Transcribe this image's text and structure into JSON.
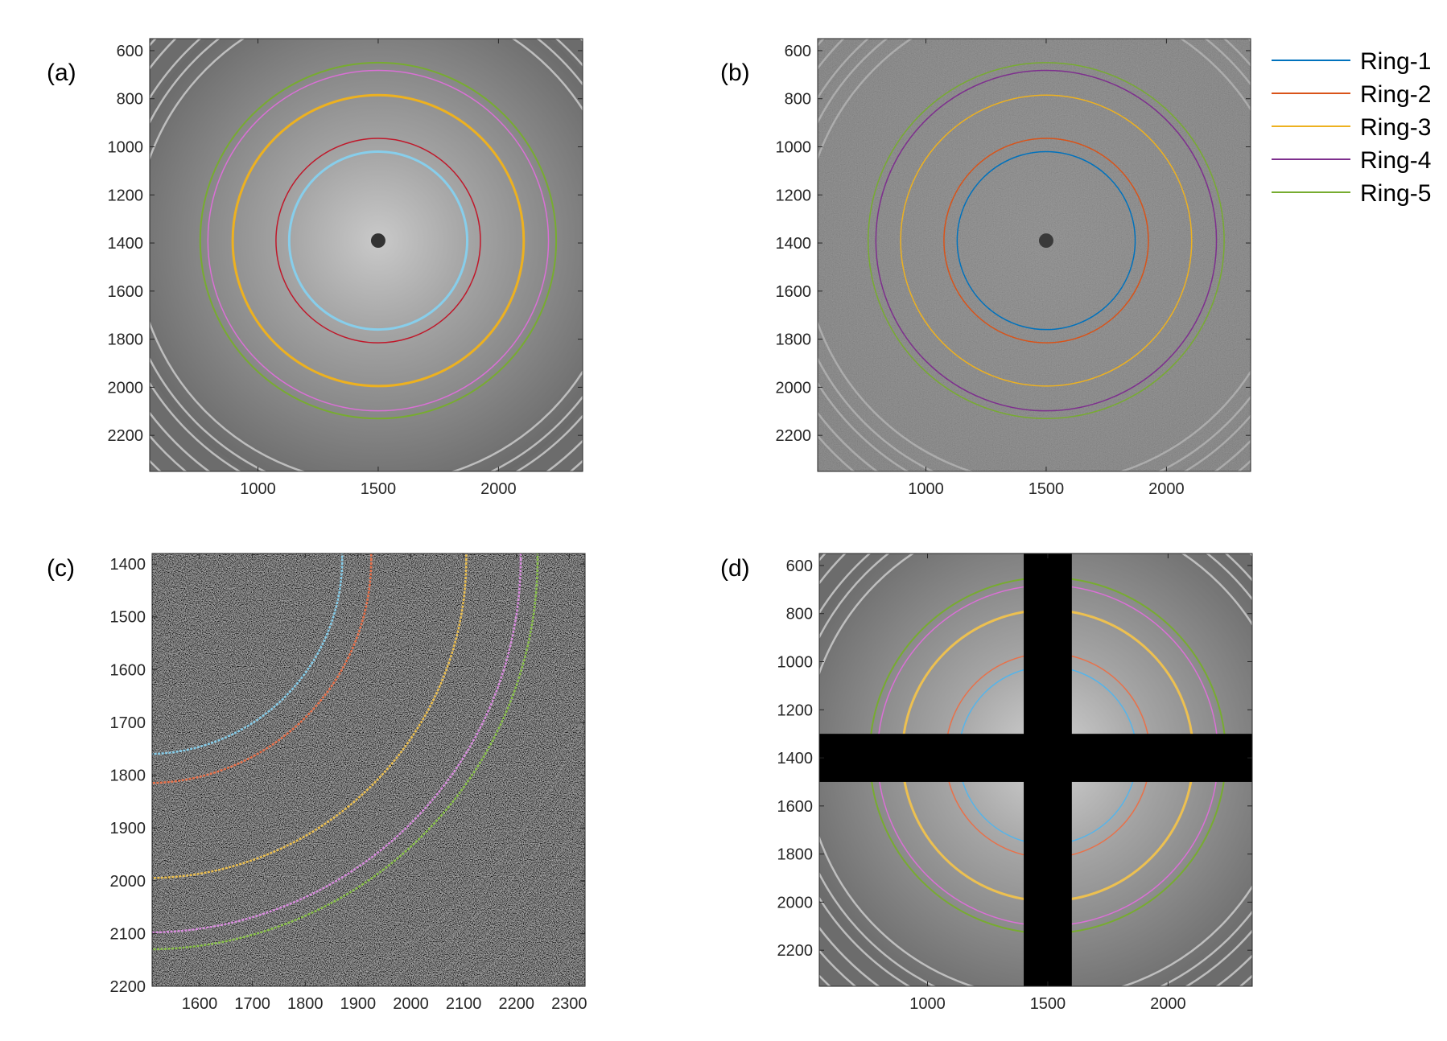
{
  "figure": {
    "legend": {
      "placement": "right of panel (b)",
      "entries": [
        {
          "name": "Ring-1",
          "color": "#0072BD"
        },
        {
          "name": "Ring-2",
          "color": "#D95319"
        },
        {
          "name": "Ring-3",
          "color": "#EDB120"
        },
        {
          "name": "Ring-4",
          "color": "#7E2F8E"
        },
        {
          "name": "Ring-5",
          "color": "#77AC30"
        }
      ]
    }
  },
  "chart_data": [
    {
      "panel": "(a)",
      "type": "image",
      "image_style": "gray",
      "xlim": [
        550,
        2350
      ],
      "ylim": [
        550,
        2350
      ],
      "y_reversed": true,
      "xticks": [
        1000,
        1500,
        2000
      ],
      "yticks": [
        600,
        800,
        1000,
        1200,
        1400,
        1600,
        1800,
        2000,
        2200
      ],
      "center": [
        1500,
        1390
      ],
      "beam_stop": true,
      "background_rings": [
        1010,
        1070,
        1120,
        1190,
        1250,
        1320,
        1400
      ],
      "rings": [
        {
          "name": "Ring-1",
          "radius": 370,
          "color": "#87CEEB",
          "width": 3
        },
        {
          "name": "Ring-2",
          "radius": 425,
          "color": "#C0182A",
          "width": 1.5
        },
        {
          "name": "Ring-3",
          "radius": 605,
          "color": "#EDB120",
          "width": 3
        },
        {
          "name": "Ring-4",
          "radius": 708,
          "color": "#DA70D6",
          "width": 1.5
        },
        {
          "name": "Ring-5",
          "radius": 740,
          "color": "#77AC30",
          "width": 2
        }
      ]
    },
    {
      "panel": "(b)",
      "type": "image",
      "image_style": "noisy",
      "xlim": [
        550,
        2350
      ],
      "ylim": [
        550,
        2350
      ],
      "y_reversed": true,
      "xticks": [
        1000,
        1500,
        2000
      ],
      "yticks": [
        600,
        800,
        1000,
        1200,
        1400,
        1600,
        1800,
        2000,
        2200
      ],
      "center": [
        1500,
        1390
      ],
      "beam_stop": true,
      "background_rings": [
        1010,
        1070,
        1120,
        1190,
        1250
      ],
      "rings": [
        {
          "name": "Ring-1",
          "radius": 370,
          "color": "#0072BD",
          "width": 1.5
        },
        {
          "name": "Ring-2",
          "radius": 425,
          "color": "#D95319",
          "width": 1.5
        },
        {
          "name": "Ring-3",
          "radius": 605,
          "color": "#EDB120",
          "width": 1.5
        },
        {
          "name": "Ring-4",
          "radius": 708,
          "color": "#7E2F8E",
          "width": 1.5
        },
        {
          "name": "Ring-5",
          "radius": 740,
          "color": "#77AC30",
          "width": 1.5
        }
      ]
    },
    {
      "panel": "(c)",
      "type": "image",
      "image_style": "dark-noise",
      "xlim": [
        1510,
        2330
      ],
      "ylim": [
        1380,
        2200
      ],
      "y_reversed": true,
      "xticks": [
        1600,
        1700,
        1800,
        1900,
        2000,
        2100,
        2200,
        2300
      ],
      "yticks": [
        1400,
        1500,
        1600,
        1700,
        1800,
        1900,
        2000,
        2100,
        2200
      ],
      "center": [
        1500,
        1390
      ],
      "beam_stop": false,
      "background_rings": [
        880,
        920,
        960,
        1010
      ],
      "rings": [
        {
          "name": "Ring-1",
          "radius": 370,
          "color": "#87CEEB",
          "width": 2.5
        },
        {
          "name": "Ring-2",
          "radius": 425,
          "color": "#E8714A",
          "width": 2.5
        },
        {
          "name": "Ring-3",
          "radius": 605,
          "color": "#EDC050",
          "width": 2.5
        },
        {
          "name": "Ring-4",
          "radius": 708,
          "color": "#DA8FE0",
          "width": 2.5
        },
        {
          "name": "Ring-5",
          "radius": 740,
          "color": "#8BC34A",
          "width": 2.5
        }
      ]
    },
    {
      "panel": "(d)",
      "type": "image",
      "image_style": "gray-masked",
      "xlim": [
        550,
        2350
      ],
      "ylim": [
        550,
        2350
      ],
      "y_reversed": true,
      "xticks": [
        1000,
        1500,
        2000
      ],
      "yticks": [
        600,
        800,
        1000,
        1200,
        1400,
        1600,
        1800,
        2000,
        2200
      ],
      "center": [
        1500,
        1390
      ],
      "beam_stop": false,
      "background_rings": [
        1010,
        1070,
        1120,
        1190,
        1250,
        1320,
        1400
      ],
      "mask": {
        "x_band": [
          1400,
          1600
        ],
        "y_band": [
          1300,
          1500
        ]
      },
      "rings": [
        {
          "name": "Ring-1",
          "radius": 370,
          "color": "#56B4E9",
          "width": 1.5
        },
        {
          "name": "Ring-2",
          "radius": 425,
          "color": "#E8714A",
          "width": 1.5
        },
        {
          "name": "Ring-3",
          "radius": 605,
          "color": "#EDC050",
          "width": 3
        },
        {
          "name": "Ring-4",
          "radius": 708,
          "color": "#DA70D6",
          "width": 1.5
        },
        {
          "name": "Ring-5",
          "radius": 740,
          "color": "#77AC30",
          "width": 2
        }
      ]
    }
  ]
}
